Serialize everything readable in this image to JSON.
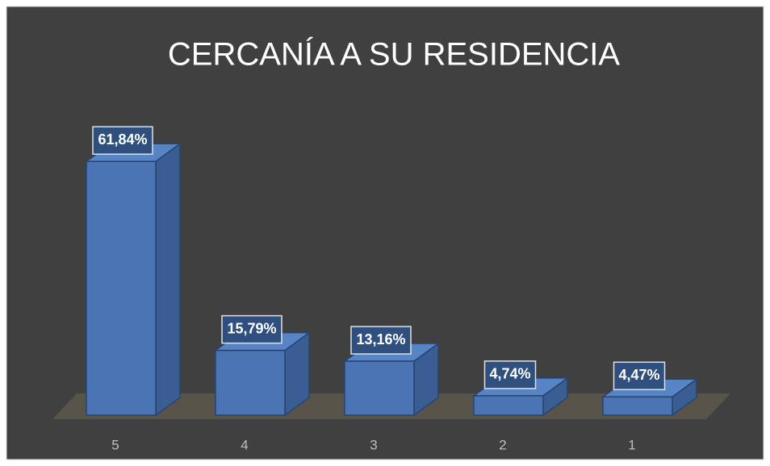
{
  "chart_data": {
    "type": "bar3d",
    "title": "CERCANÍA A SU RESIDENCIA",
    "categories": [
      "5",
      "4",
      "3",
      "2",
      "1"
    ],
    "values": [
      61.84,
      15.79,
      13.16,
      4.74,
      4.47
    ],
    "value_labels": [
      "61,84%",
      "15,79%",
      "13,16%",
      "4,74%",
      "4,47%"
    ],
    "color": "#4a74b4"
  }
}
